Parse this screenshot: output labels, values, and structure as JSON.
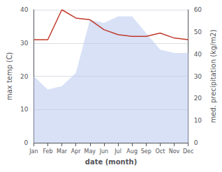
{
  "chart_data": {
    "type": "line",
    "xlabel": "date (month)",
    "ylabel": "max temp (C)",
    "y2label": "med. precipitation (kg/m2)",
    "categories": [
      "Jan",
      "Feb",
      "Mar",
      "Apr",
      "May",
      "Jun",
      "Jul",
      "Aug",
      "Sep",
      "Oct",
      "Nov",
      "Dec"
    ],
    "series": [
      {
        "type": "area",
        "color": "#b8c8ee",
        "values": [
          20,
          16,
          17,
          21,
          37,
          36,
          38,
          38,
          33,
          28,
          27,
          27
        ]
      },
      {
        "type": "line",
        "color": "#c0392b",
        "values": [
          31,
          31,
          40,
          37.5,
          37,
          34,
          32.5,
          32,
          32,
          33,
          31.5,
          31
        ]
      }
    ],
    "ylim": [
      0,
      40
    ],
    "yticks": [
      0,
      10,
      20,
      30,
      40
    ],
    "y2lim": [
      0,
      60
    ],
    "y2ticks": [
      0,
      10,
      20,
      30,
      40,
      50,
      60
    ],
    "grid": true
  }
}
